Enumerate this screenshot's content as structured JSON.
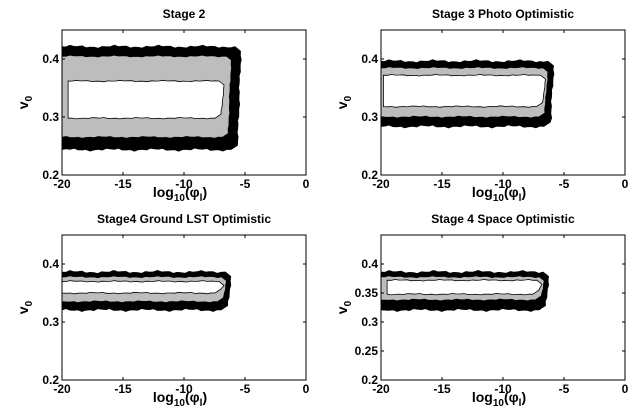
{
  "chart_data": [
    {
      "type": "contour",
      "title": "Stage 2",
      "xlabel": "log10(φl)",
      "ylabel": "v0",
      "xlim": [
        -20,
        0
      ],
      "ylim": [
        0.2,
        0.45
      ],
      "xticks": [
        -20,
        -15,
        -10,
        -5,
        0
      ],
      "yticks": [
        0.2,
        0.3,
        0.4
      ],
      "ytick_labels": [
        "0.2",
        "0.3",
        "0.4"
      ],
      "regions": {
        "outer_black": {
          "x": [
            -20,
            -5.5
          ],
          "y": [
            0.245,
            0.42
          ]
        },
        "gray": {
          "x": [
            -20,
            -6.2
          ],
          "y": [
            0.265,
            0.405
          ]
        },
        "inner_white": {
          "x": [
            -19.5,
            -6.8
          ],
          "y": [
            0.298,
            0.362
          ]
        }
      }
    },
    {
      "type": "contour",
      "title": "Stage 3 Photo Optimistic",
      "xlabel": "log10(φl)",
      "ylabel": "v0",
      "xlim": [
        -20,
        0
      ],
      "ylim": [
        0.2,
        0.45
      ],
      "xticks": [
        -20,
        -15,
        -10,
        -5,
        0
      ],
      "yticks": [
        0.2,
        0.3,
        0.4
      ],
      "ytick_labels": [
        "0.2",
        "0.3",
        "0.4"
      ],
      "regions": {
        "outer_black": {
          "x": [
            -20,
            -6.0
          ],
          "y": [
            0.285,
            0.395
          ]
        },
        "gray": {
          "x": [
            -20,
            -6.4
          ],
          "y": [
            0.3,
            0.385
          ]
        },
        "inner_white": {
          "x": [
            -19.8,
            -6.6
          ],
          "y": [
            0.318,
            0.372
          ]
        }
      }
    },
    {
      "type": "contour",
      "title": "Stage4 Ground LST Optimistic",
      "xlabel": "log10(φl)",
      "ylabel": "v0",
      "xlim": [
        -20,
        0
      ],
      "ylim": [
        0.2,
        0.45
      ],
      "xticks": [
        -20,
        -15,
        -10,
        -5,
        0
      ],
      "yticks": [
        0.2,
        0.3,
        0.4
      ],
      "ytick_labels": [
        "0.2",
        "0.3",
        "0.4"
      ],
      "regions": {
        "outer_black": {
          "x": [
            -20,
            -6.3
          ],
          "y": [
            0.322,
            0.385
          ]
        },
        "gray": {
          "x": [
            -20,
            -6.6
          ],
          "y": [
            0.335,
            0.378
          ]
        },
        "inner_white": {
          "x": [
            -20,
            -6.8
          ],
          "y": [
            0.35,
            0.37
          ]
        }
      }
    },
    {
      "type": "contour",
      "title": "Stage 4 Space Optimistic",
      "xlabel": "log10(φl)",
      "ylabel": "v0",
      "xlim": [
        -20,
        0
      ],
      "ylim": [
        0.2,
        0.45
      ],
      "xticks": [
        -20,
        -15,
        -10,
        -5,
        0
      ],
      "yticks": [
        0.2,
        0.25,
        0.3,
        0.35,
        0.4
      ],
      "ytick_labels": [
        "0.2",
        "0.25",
        "0.3",
        "0.35",
        "0.4"
      ],
      "regions": {
        "outer_black": {
          "x": [
            -20,
            -6.4
          ],
          "y": [
            0.322,
            0.385
          ]
        },
        "gray": {
          "x": [
            -20,
            -6.7
          ],
          "y": [
            0.338,
            0.378
          ]
        },
        "inner_white": {
          "x": [
            -19.5,
            -6.9
          ],
          "y": [
            0.348,
            0.372
          ]
        }
      }
    }
  ]
}
